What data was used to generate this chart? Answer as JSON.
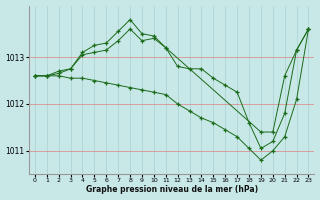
{
  "title": "Graphe pression niveau de la mer (hPa)",
  "bg_color": "#c8e8e8",
  "plot_bg_color": "#c8e8e8",
  "grid_color_h": "#e08080",
  "grid_color_v": "#a8d0d0",
  "line_color": "#1a6b1a",
  "marker_color": "#1a6b1a",
  "xlim": [
    -0.5,
    23.5
  ],
  "ylim": [
    1010.5,
    1014.1
  ],
  "yticks": [
    1011,
    1012,
    1013
  ],
  "xticks": [
    0,
    1,
    2,
    3,
    4,
    5,
    6,
    7,
    8,
    9,
    10,
    11,
    12,
    13,
    14,
    15,
    16,
    17,
    18,
    19,
    20,
    21,
    22,
    23
  ],
  "series_max": [
    [
      0,
      1012.6
    ],
    [
      1,
      1012.6
    ],
    [
      2,
      1012.65
    ],
    [
      3,
      1012.75
    ],
    [
      4,
      1013.05
    ],
    [
      5,
      1013.1
    ],
    [
      6,
      1013.15
    ],
    [
      7,
      1013.35
    ],
    [
      8,
      1013.6
    ],
    [
      9,
      1013.35
    ],
    [
      10,
      1013.4
    ],
    [
      11,
      1013.2
    ],
    [
      19,
      1011.4
    ],
    [
      20,
      1011.4
    ],
    [
      21,
      1012.6
    ],
    [
      22,
      1013.15
    ],
    [
      23,
      1013.6
    ]
  ],
  "series_min": [
    [
      0,
      1012.6
    ],
    [
      1,
      1012.6
    ],
    [
      2,
      1012.6
    ],
    [
      3,
      1012.55
    ],
    [
      4,
      1012.55
    ],
    [
      5,
      1012.5
    ],
    [
      6,
      1012.45
    ],
    [
      7,
      1012.4
    ],
    [
      8,
      1012.35
    ],
    [
      9,
      1012.3
    ],
    [
      10,
      1012.25
    ],
    [
      11,
      1012.2
    ],
    [
      12,
      1012.0
    ],
    [
      13,
      1011.85
    ],
    [
      14,
      1011.7
    ],
    [
      15,
      1011.6
    ],
    [
      16,
      1011.45
    ],
    [
      17,
      1011.3
    ],
    [
      18,
      1011.05
    ],
    [
      19,
      1010.8
    ],
    [
      20,
      1011.0
    ],
    [
      21,
      1011.3
    ],
    [
      22,
      1012.1
    ],
    [
      23,
      1013.6
    ]
  ],
  "series_avg": [
    [
      0,
      1012.6
    ],
    [
      1,
      1012.6
    ],
    [
      2,
      1012.7
    ],
    [
      3,
      1012.75
    ],
    [
      4,
      1013.1
    ],
    [
      5,
      1013.25
    ],
    [
      6,
      1013.3
    ],
    [
      7,
      1013.55
    ],
    [
      8,
      1013.8
    ],
    [
      9,
      1013.5
    ],
    [
      10,
      1013.45
    ],
    [
      11,
      1013.2
    ],
    [
      12,
      1012.8
    ],
    [
      13,
      1012.75
    ],
    [
      14,
      1012.75
    ],
    [
      15,
      1012.55
    ],
    [
      16,
      1012.4
    ],
    [
      17,
      1012.25
    ],
    [
      18,
      1011.6
    ],
    [
      19,
      1011.05
    ],
    [
      20,
      1011.2
    ],
    [
      21,
      1011.8
    ],
    [
      22,
      1013.15
    ],
    [
      23,
      1013.6
    ]
  ]
}
